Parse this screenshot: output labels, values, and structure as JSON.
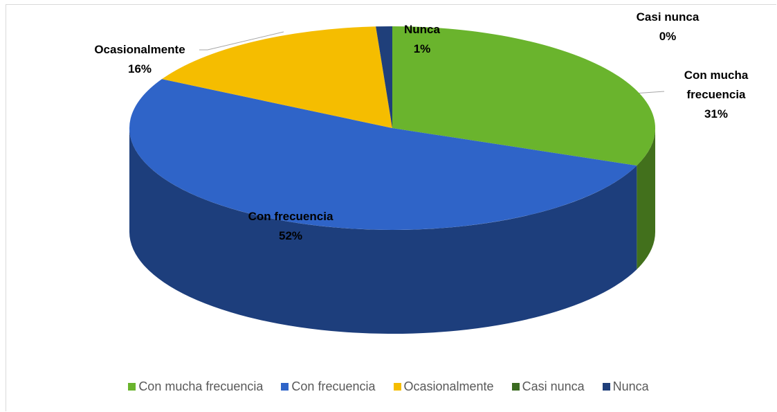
{
  "chart_data": {
    "type": "pie",
    "categories": [
      "Con mucha frecuencia",
      "Con frecuencia",
      "Ocasionalmente",
      "Casi nunca",
      "Nunca"
    ],
    "values": [
      31,
      52,
      16,
      0,
      1
    ],
    "value_labels": [
      "31%",
      "52%",
      "16%",
      "0%",
      "1%"
    ],
    "colors": [
      "#6ab42d",
      "#2f64c8",
      "#f5bd00",
      "#3b6b21",
      "#1f3f7a"
    ],
    "legend": "bottom"
  }
}
